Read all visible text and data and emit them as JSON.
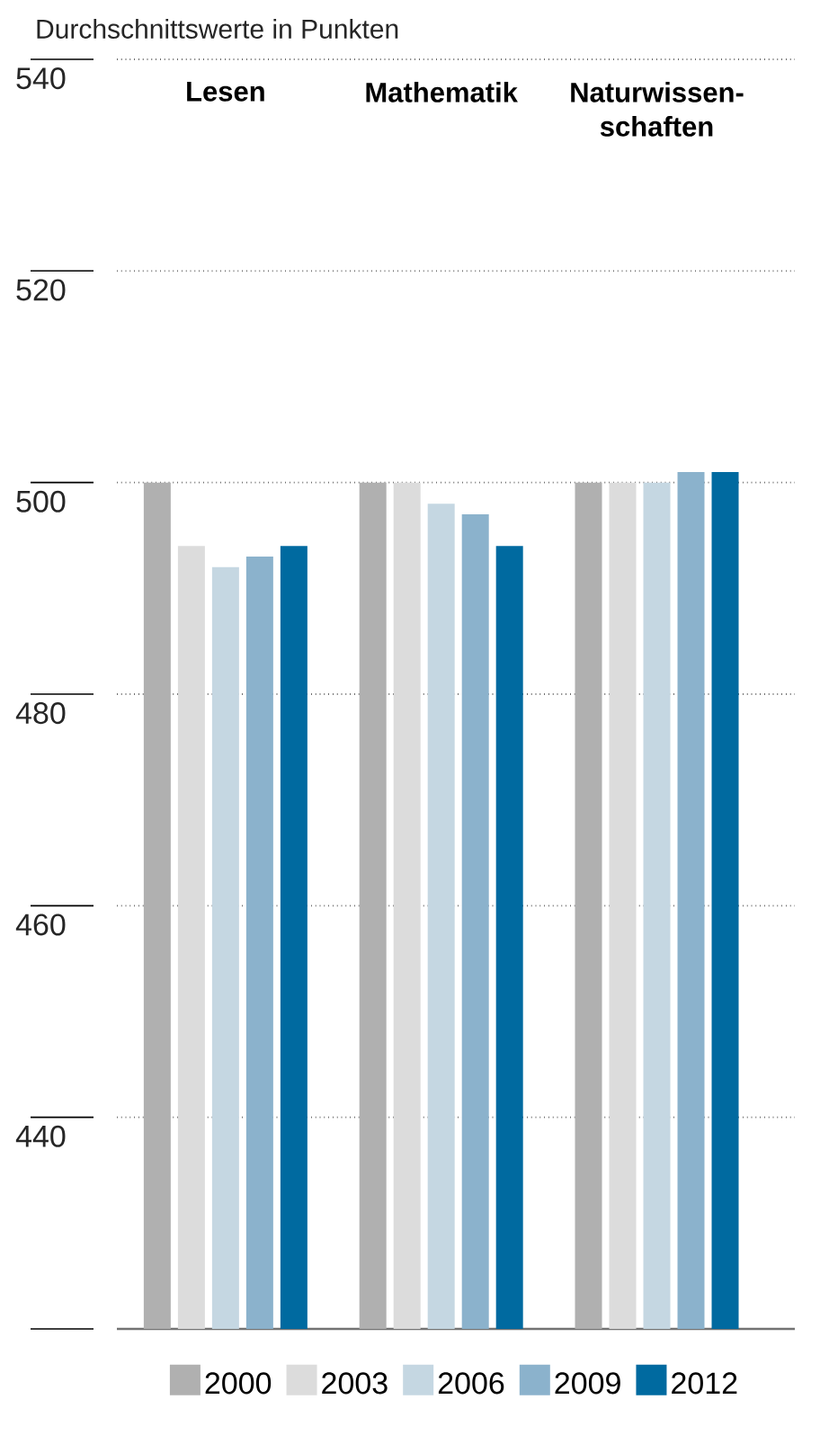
{
  "chart_data": {
    "type": "bar",
    "title": "Durchschnittswerte in Punkten",
    "categories": [
      "Lesen",
      "Mathematik",
      "Naturwissen-schaften"
    ],
    "series": [
      {
        "name": "2000",
        "color": "#b0b0b0",
        "values": [
          500,
          500,
          500
        ]
      },
      {
        "name": "2003",
        "color": "#dcdcdc",
        "values": [
          494,
          500,
          500
        ]
      },
      {
        "name": "2006",
        "color": "#c5d7e2",
        "values": [
          492,
          498,
          500
        ]
      },
      {
        "name": "2009",
        "color": "#8bb2cc",
        "values": [
          493,
          497,
          501
        ]
      },
      {
        "name": "2012",
        "color": "#006aa0",
        "values": [
          494,
          494,
          501
        ]
      }
    ],
    "ylim": [
      420,
      540
    ],
    "yticks": [
      {
        "value": 420,
        "label": null
      },
      440,
      460,
      480,
      500,
      520,
      540
    ],
    "grid": "y",
    "legend": "bottom"
  }
}
